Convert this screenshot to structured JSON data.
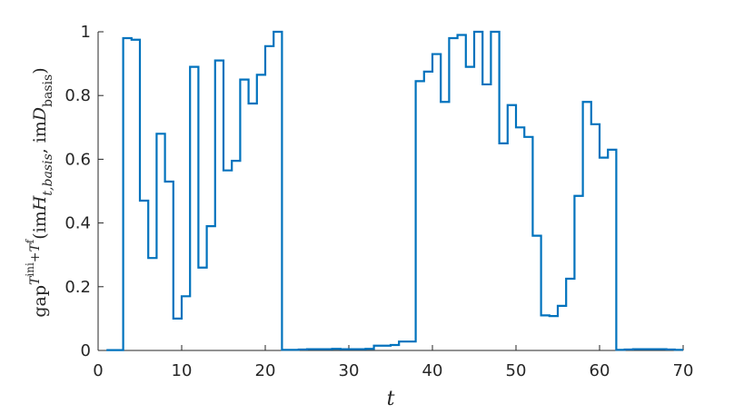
{
  "chart_data": {
    "type": "stairs",
    "xlabel": "t",
    "ylabel_parts": [
      "gap",
      "T",
      "ini",
      "+T",
      "f",
      "(im",
      "H",
      "t,basis",
      ", im",
      "D",
      "basis",
      ")"
    ],
    "color": "#0072bd",
    "xlim": [
      0,
      70
    ],
    "xticks": [
      0,
      10,
      20,
      30,
      40,
      50,
      60,
      70
    ],
    "ylim": [
      0,
      1
    ],
    "yticks": [
      0,
      0.2,
      0.4,
      0.6,
      0.8,
      1
    ],
    "x": [
      1,
      2,
      3,
      4,
      5,
      6,
      7,
      8,
      9,
      10,
      11,
      12,
      13,
      14,
      15,
      16,
      17,
      18,
      19,
      20,
      21,
      22,
      23,
      24,
      25,
      26,
      27,
      28,
      29,
      30,
      31,
      32,
      33,
      34,
      35,
      36,
      37,
      38,
      39,
      40,
      41,
      42,
      43,
      44,
      45,
      46,
      47,
      48,
      49,
      50,
      51,
      52,
      53,
      54,
      55,
      56,
      57,
      58,
      59,
      60,
      61,
      62,
      63,
      64,
      65,
      66,
      67,
      68,
      69,
      70
    ],
    "values": [
      0.001,
      0.001,
      0.98,
      0.975,
      0.47,
      0.29,
      0.68,
      0.53,
      0.1,
      0.17,
      0.89,
      0.26,
      0.39,
      0.91,
      0.565,
      0.595,
      0.85,
      0.775,
      0.865,
      0.955,
      1.0,
      0.002,
      0.002,
      0.003,
      0.004,
      0.004,
      0.004,
      0.005,
      0.004,
      0.004,
      0.004,
      0.005,
      0.015,
      0.015,
      0.017,
      0.028,
      0.028,
      0.845,
      0.875,
      0.93,
      0.78,
      0.98,
      0.99,
      0.89,
      1.0,
      0.835,
      1.0,
      0.65,
      0.77,
      0.7,
      0.67,
      0.36,
      0.11,
      0.108,
      0.14,
      0.225,
      0.485,
      0.78,
      0.71,
      0.605,
      0.63,
      0.002,
      0.003,
      0.004,
      0.004,
      0.004,
      0.004,
      0.003,
      0.002,
      0.002
    ]
  }
}
